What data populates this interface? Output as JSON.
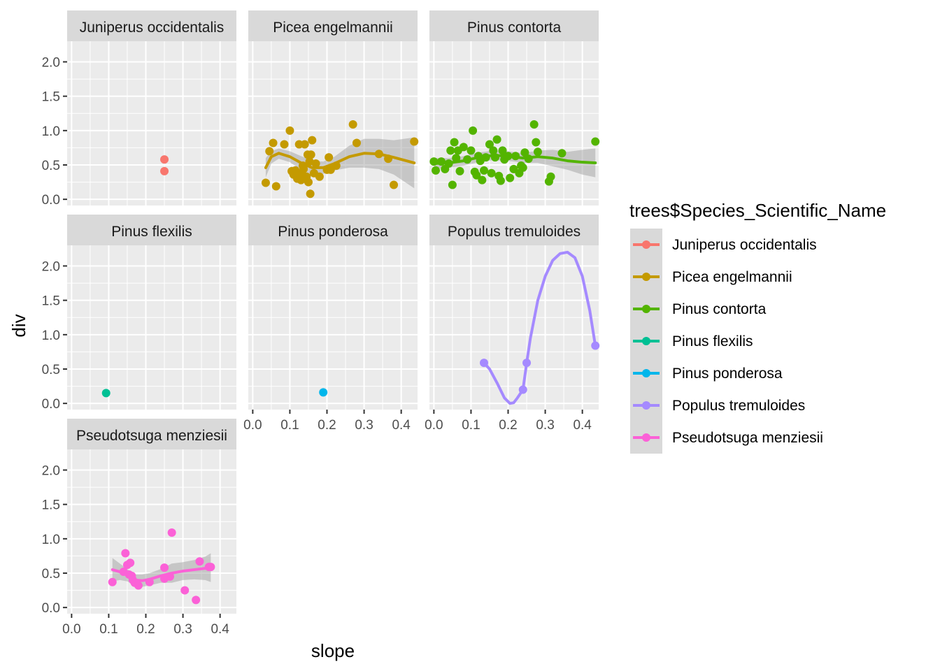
{
  "chart_data": {
    "type": "scatter",
    "xlabel": "slope",
    "ylabel": "div",
    "xlim": [
      -0.012,
      0.444
    ],
    "ylim": [
      -0.09,
      2.3
    ],
    "x_ticks": [
      0.0,
      0.1,
      0.2,
      0.3,
      0.4
    ],
    "x_tick_labels": [
      "0.0",
      "0.1",
      "0.2",
      "0.3",
      "0.4"
    ],
    "y_ticks": [
      0.0,
      0.5,
      1.0,
      1.5,
      2.0
    ],
    "y_tick_labels": [
      "0.0",
      "0.5",
      "1.0",
      "1.5",
      "2.0"
    ],
    "grid": true,
    "legend": {
      "title": "trees$Species_Scientific_Name",
      "placement": "right"
    },
    "panels": [
      {
        "name": "Juniperus occidentalis",
        "color": "#F8766D",
        "points": [
          [
            0.25,
            0.58
          ],
          [
            0.25,
            0.41
          ]
        ],
        "smooth": null
      },
      {
        "name": "Picea engelmannii",
        "color": "#C49A00",
        "points": [
          [
            0.035,
            0.24
          ],
          [
            0.045,
            0.7
          ],
          [
            0.055,
            0.82
          ],
          [
            0.063,
            0.19
          ],
          [
            0.085,
            0.8
          ],
          [
            0.1,
            1.0
          ],
          [
            0.105,
            0.41
          ],
          [
            0.11,
            0.36
          ],
          [
            0.115,
            0.42
          ],
          [
            0.12,
            0.3
          ],
          [
            0.12,
            0.34
          ],
          [
            0.125,
            0.8
          ],
          [
            0.128,
            0.37
          ],
          [
            0.13,
            0.28
          ],
          [
            0.135,
            0.49
          ],
          [
            0.137,
            0.44
          ],
          [
            0.14,
            0.8
          ],
          [
            0.145,
            0.33
          ],
          [
            0.148,
            0.65
          ],
          [
            0.15,
            0.25
          ],
          [
            0.153,
            0.55
          ],
          [
            0.155,
            0.08
          ],
          [
            0.157,
            0.65
          ],
          [
            0.16,
            0.86
          ],
          [
            0.165,
            0.38
          ],
          [
            0.17,
            0.52
          ],
          [
            0.18,
            0.33
          ],
          [
            0.2,
            0.43
          ],
          [
            0.205,
            0.61
          ],
          [
            0.21,
            0.43
          ],
          [
            0.225,
            0.49
          ],
          [
            0.27,
            1.09
          ],
          [
            0.28,
            0.82
          ],
          [
            0.34,
            0.66
          ],
          [
            0.365,
            0.59
          ],
          [
            0.38,
            0.21
          ],
          [
            0.435,
            0.84
          ]
        ],
        "smooth": {
          "line": [
            [
              0.035,
              0.46
            ],
            [
              0.05,
              0.62
            ],
            [
              0.07,
              0.67
            ],
            [
              0.1,
              0.62
            ],
            [
              0.13,
              0.53
            ],
            [
              0.16,
              0.46
            ],
            [
              0.19,
              0.46
            ],
            [
              0.22,
              0.52
            ],
            [
              0.26,
              0.62
            ],
            [
              0.3,
              0.67
            ],
            [
              0.34,
              0.66
            ],
            [
              0.38,
              0.61
            ],
            [
              0.435,
              0.53
            ]
          ],
          "upper": [
            [
              0.035,
              0.6
            ],
            [
              0.05,
              0.7
            ],
            [
              0.07,
              0.74
            ],
            [
              0.1,
              0.7
            ],
            [
              0.13,
              0.63
            ],
            [
              0.16,
              0.56
            ],
            [
              0.19,
              0.55
            ],
            [
              0.22,
              0.62
            ],
            [
              0.26,
              0.78
            ],
            [
              0.3,
              0.88
            ],
            [
              0.34,
              0.88
            ],
            [
              0.38,
              0.86
            ],
            [
              0.435,
              0.9
            ]
          ],
          "lower": [
            [
              0.035,
              0.32
            ],
            [
              0.05,
              0.52
            ],
            [
              0.07,
              0.59
            ],
            [
              0.1,
              0.54
            ],
            [
              0.13,
              0.43
            ],
            [
              0.16,
              0.36
            ],
            [
              0.19,
              0.37
            ],
            [
              0.22,
              0.42
            ],
            [
              0.26,
              0.46
            ],
            [
              0.3,
              0.46
            ],
            [
              0.34,
              0.44
            ],
            [
              0.38,
              0.36
            ],
            [
              0.435,
              0.16
            ]
          ]
        }
      },
      {
        "name": "Pinus contorta",
        "color": "#53B400",
        "points": [
          [
            0.0,
            0.55
          ],
          [
            0.005,
            0.42
          ],
          [
            0.02,
            0.55
          ],
          [
            0.03,
            0.44
          ],
          [
            0.04,
            0.52
          ],
          [
            0.045,
            0.71
          ],
          [
            0.05,
            0.21
          ],
          [
            0.055,
            0.83
          ],
          [
            0.06,
            0.6
          ],
          [
            0.065,
            0.71
          ],
          [
            0.07,
            0.41
          ],
          [
            0.08,
            0.76
          ],
          [
            0.09,
            0.58
          ],
          [
            0.1,
            0.71
          ],
          [
            0.105,
            1.0
          ],
          [
            0.11,
            0.4
          ],
          [
            0.115,
            0.35
          ],
          [
            0.12,
            0.63
          ],
          [
            0.125,
            0.56
          ],
          [
            0.13,
            0.28
          ],
          [
            0.135,
            0.42
          ],
          [
            0.14,
            0.61
          ],
          [
            0.15,
            0.8
          ],
          [
            0.155,
            0.38
          ],
          [
            0.16,
            0.71
          ],
          [
            0.165,
            0.61
          ],
          [
            0.17,
            0.87
          ],
          [
            0.175,
            0.34
          ],
          [
            0.18,
            0.27
          ],
          [
            0.185,
            0.71
          ],
          [
            0.19,
            0.58
          ],
          [
            0.2,
            0.63
          ],
          [
            0.205,
            0.31
          ],
          [
            0.215,
            0.44
          ],
          [
            0.22,
            0.63
          ],
          [
            0.23,
            0.38
          ],
          [
            0.235,
            0.49
          ],
          [
            0.24,
            0.46
          ],
          [
            0.245,
            0.68
          ],
          [
            0.255,
            0.59
          ],
          [
            0.27,
            1.09
          ],
          [
            0.275,
            0.83
          ],
          [
            0.28,
            0.69
          ],
          [
            0.31,
            0.26
          ],
          [
            0.315,
            0.33
          ],
          [
            0.345,
            0.67
          ],
          [
            0.435,
            0.84
          ]
        ],
        "smooth": {
          "line": [
            [
              0.0,
              0.52
            ],
            [
              0.04,
              0.53
            ],
            [
              0.08,
              0.56
            ],
            [
              0.12,
              0.61
            ],
            [
              0.16,
              0.64
            ],
            [
              0.2,
              0.63
            ],
            [
              0.24,
              0.6
            ],
            [
              0.28,
              0.62
            ],
            [
              0.32,
              0.6
            ],
            [
              0.36,
              0.56
            ],
            [
              0.4,
              0.54
            ],
            [
              0.435,
              0.53
            ]
          ],
          "upper": [
            [
              0.0,
              0.6
            ],
            [
              0.04,
              0.6
            ],
            [
              0.08,
              0.63
            ],
            [
              0.12,
              0.68
            ],
            [
              0.16,
              0.71
            ],
            [
              0.2,
              0.7
            ],
            [
              0.24,
              0.67
            ],
            [
              0.28,
              0.71
            ],
            [
              0.32,
              0.72
            ],
            [
              0.36,
              0.69
            ],
            [
              0.4,
              0.72
            ],
            [
              0.435,
              0.74
            ]
          ],
          "lower": [
            [
              0.0,
              0.44
            ],
            [
              0.04,
              0.46
            ],
            [
              0.08,
              0.49
            ],
            [
              0.12,
              0.54
            ],
            [
              0.16,
              0.57
            ],
            [
              0.2,
              0.56
            ],
            [
              0.24,
              0.53
            ],
            [
              0.28,
              0.53
            ],
            [
              0.32,
              0.48
            ],
            [
              0.36,
              0.43
            ],
            [
              0.4,
              0.36
            ],
            [
              0.435,
              0.32
            ]
          ]
        }
      },
      {
        "name": "Pinus flexilis",
        "color": "#00C094",
        "points": [
          [
            0.093,
            0.15
          ]
        ],
        "smooth": null
      },
      {
        "name": "Pinus ponderosa",
        "color": "#00B6EB",
        "points": [
          [
            0.19,
            0.16
          ]
        ],
        "smooth": null
      },
      {
        "name": "Populus tremuloides",
        "color": "#A58AFF",
        "points": [
          [
            0.135,
            0.59
          ],
          [
            0.24,
            0.2
          ],
          [
            0.25,
            0.59
          ],
          [
            0.435,
            0.84
          ]
        ],
        "smooth": {
          "line": [
            [
              0.135,
              0.59
            ],
            [
              0.15,
              0.5
            ],
            [
              0.17,
              0.3
            ],
            [
              0.19,
              0.08
            ],
            [
              0.205,
              0.0
            ],
            [
              0.215,
              0.01
            ],
            [
              0.225,
              0.08
            ],
            [
              0.24,
              0.2
            ],
            [
              0.25,
              0.59
            ],
            [
              0.26,
              0.95
            ],
            [
              0.28,
              1.5
            ],
            [
              0.3,
              1.85
            ],
            [
              0.32,
              2.08
            ],
            [
              0.34,
              2.18
            ],
            [
              0.36,
              2.2
            ],
            [
              0.38,
              2.12
            ],
            [
              0.4,
              1.85
            ],
            [
              0.42,
              1.35
            ],
            [
              0.435,
              0.84
            ]
          ],
          "upper": null,
          "lower": null
        }
      },
      {
        "name": "Pseudotsuga menziesii",
        "color": "#FB61D7",
        "points": [
          [
            0.11,
            0.37
          ],
          [
            0.14,
            0.52
          ],
          [
            0.145,
            0.79
          ],
          [
            0.15,
            0.62
          ],
          [
            0.155,
            0.48
          ],
          [
            0.158,
            0.65
          ],
          [
            0.162,
            0.46
          ],
          [
            0.165,
            0.4
          ],
          [
            0.17,
            0.36
          ],
          [
            0.18,
            0.32
          ],
          [
            0.21,
            0.37
          ],
          [
            0.25,
            0.58
          ],
          [
            0.25,
            0.42
          ],
          [
            0.265,
            0.45
          ],
          [
            0.27,
            1.09
          ],
          [
            0.305,
            0.25
          ],
          [
            0.335,
            0.11
          ],
          [
            0.345,
            0.67
          ],
          [
            0.37,
            0.59
          ],
          [
            0.375,
            0.59
          ]
        ],
        "smooth": {
          "line": [
            [
              0.11,
              0.55
            ],
            [
              0.13,
              0.52
            ],
            [
              0.15,
              0.47
            ],
            [
              0.17,
              0.4
            ],
            [
              0.19,
              0.39
            ],
            [
              0.21,
              0.41
            ],
            [
              0.24,
              0.46
            ],
            [
              0.27,
              0.5
            ],
            [
              0.3,
              0.53
            ],
            [
              0.33,
              0.55
            ],
            [
              0.36,
              0.57
            ],
            [
              0.375,
              0.58
            ]
          ],
          "upper": [
            [
              0.11,
              0.72
            ],
            [
              0.13,
              0.64
            ],
            [
              0.15,
              0.56
            ],
            [
              0.17,
              0.48
            ],
            [
              0.19,
              0.48
            ],
            [
              0.21,
              0.5
            ],
            [
              0.24,
              0.56
            ],
            [
              0.27,
              0.64
            ],
            [
              0.3,
              0.66
            ],
            [
              0.33,
              0.69
            ],
            [
              0.36,
              0.74
            ],
            [
              0.375,
              0.79
            ]
          ],
          "lower": [
            [
              0.11,
              0.38
            ],
            [
              0.13,
              0.4
            ],
            [
              0.15,
              0.38
            ],
            [
              0.17,
              0.32
            ],
            [
              0.19,
              0.3
            ],
            [
              0.21,
              0.32
            ],
            [
              0.24,
              0.36
            ],
            [
              0.27,
              0.36
            ],
            [
              0.3,
              0.4
            ],
            [
              0.33,
              0.41
            ],
            [
              0.36,
              0.4
            ],
            [
              0.375,
              0.37
            ]
          ]
        }
      }
    ]
  }
}
